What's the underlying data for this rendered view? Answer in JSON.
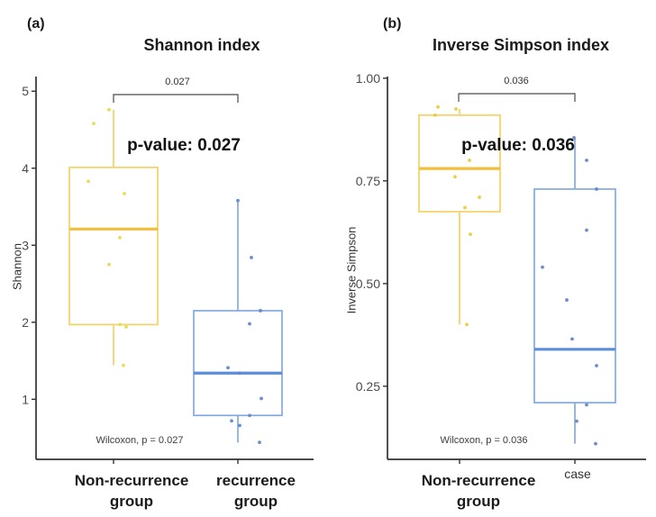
{
  "chart_data": [
    {
      "type": "boxplot",
      "panel_letter": "(a)",
      "title": "Shannon index",
      "ylabel": "Shannon",
      "xlabel": "",
      "ylim": [
        0.22,
        5.19
      ],
      "yticks": [
        {
          "v": 5,
          "label": "5"
        },
        {
          "v": 4,
          "label": "4"
        },
        {
          "v": 3,
          "label": "3"
        },
        {
          "v": 2,
          "label": "2"
        },
        {
          "v": 1,
          "label": "1"
        }
      ],
      "grid": "off",
      "significance": {
        "bracket_label": "0.027",
        "pvalue_text": "p-value: 0.027",
        "caption": "Wilcoxon, p = 0.027"
      },
      "groups": [
        {
          "name": "Non-recurrence group",
          "label_lines": [
            "Non-recurrence",
            "group"
          ],
          "box_color": "#F5D264",
          "median_color": "#F2BF3A",
          "point_color": "#E9D94F",
          "box": {
            "whisker_low": 1.44,
            "q1": 1.97,
            "median": 3.21,
            "q3": 4.01,
            "whisker_high": 4.76
          },
          "points": [
            {
              "v": 4.76,
              "dx": -5
            },
            {
              "v": 4.58,
              "dx": -22
            },
            {
              "v": 3.83,
              "dx": -28
            },
            {
              "v": 3.67,
              "dx": 12
            },
            {
              "v": 3.1,
              "dx": 7
            },
            {
              "v": 2.75,
              "dx": -5
            },
            {
              "v": 1.97,
              "dx": 7
            },
            {
              "v": 1.94,
              "dx": 14
            },
            {
              "v": 1.44,
              "dx": 11
            }
          ]
        },
        {
          "name": "recurrence group",
          "label_lines": [
            "recurrence",
            "group"
          ],
          "box_color": "#84A9DE",
          "median_color": "#5C8DD9",
          "point_color": "#6289CB",
          "box": {
            "whisker_low": 0.44,
            "q1": 0.79,
            "median": 1.34,
            "q3": 2.15,
            "whisker_high": 3.58
          },
          "points": [
            {
              "v": 3.58,
              "dx": 0
            },
            {
              "v": 2.84,
              "dx": 15
            },
            {
              "v": 2.15,
              "dx": 25
            },
            {
              "v": 1.98,
              "dx": 13
            },
            {
              "v": 1.41,
              "dx": -11
            },
            {
              "v": 1.34,
              "dx": 2
            },
            {
              "v": 1.01,
              "dx": 26
            },
            {
              "v": 0.79,
              "dx": 13
            },
            {
              "v": 0.72,
              "dx": -7
            },
            {
              "v": 0.66,
              "dx": 2
            },
            {
              "v": 0.44,
              "dx": 24
            }
          ]
        }
      ]
    },
    {
      "type": "boxplot",
      "panel_letter": "(b)",
      "title": "Inverse Simpson index",
      "ylabel": "Inverse Simpson",
      "xlabel": "",
      "ylim": [
        0.072,
        1.004
      ],
      "yticks": [
        {
          "v": 1.0,
          "label": "1.00"
        },
        {
          "v": 0.75,
          "label": "0.75"
        },
        {
          "v": 0.5,
          "label": "0.50"
        },
        {
          "v": 0.25,
          "label": "0.25"
        }
      ],
      "grid": "off",
      "significance": {
        "bracket_label": "0.036",
        "pvalue_text": "p-value: 0.036",
        "caption": "Wilcoxon, p = 0.036"
      },
      "groups": [
        {
          "name": "Non-recurrence group",
          "label_lines": [
            "Non-recurrence",
            "group"
          ],
          "box_color": "#F5D264",
          "median_color": "#F2BF3A",
          "point_color": "#EBCB3E",
          "box": {
            "whisker_low": 0.4,
            "q1": 0.675,
            "median": 0.78,
            "q3": 0.91,
            "whisker_high": 0.925
          },
          "points": [
            {
              "v": 0.93,
              "dx": -24
            },
            {
              "v": 0.925,
              "dx": -4
            },
            {
              "v": 0.91,
              "dx": -27
            },
            {
              "v": 0.8,
              "dx": 11
            },
            {
              "v": 0.76,
              "dx": -5
            },
            {
              "v": 0.71,
              "dx": 22
            },
            {
              "v": 0.685,
              "dx": 6
            },
            {
              "v": 0.62,
              "dx": 12
            },
            {
              "v": 0.4,
              "dx": 8
            }
          ]
        },
        {
          "name": "case",
          "label_lines": [
            "case"
          ],
          "box_color": "#84A9DE",
          "median_color": "#5C8DD9",
          "point_color": "#6289CB",
          "box": {
            "whisker_low": 0.11,
            "q1": 0.21,
            "median": 0.34,
            "q3": 0.73,
            "whisker_high": 0.855
          },
          "points": [
            {
              "v": 0.855,
              "dx": -1
            },
            {
              "v": 0.8,
              "dx": 13
            },
            {
              "v": 0.73,
              "dx": 24
            },
            {
              "v": 0.63,
              "dx": 13
            },
            {
              "v": 0.54,
              "dx": -36
            },
            {
              "v": 0.46,
              "dx": -9
            },
            {
              "v": 0.365,
              "dx": -3
            },
            {
              "v": 0.3,
              "dx": 24
            },
            {
              "v": 0.205,
              "dx": 13
            },
            {
              "v": 0.165,
              "dx": 2
            },
            {
              "v": 0.11,
              "dx": 23
            }
          ]
        }
      ]
    }
  ],
  "style": {
    "axis_color": "#333333",
    "tick_label_color": "#4a4a4a",
    "bracket_color": "#4a4a4a",
    "background": "#ffffff"
  }
}
